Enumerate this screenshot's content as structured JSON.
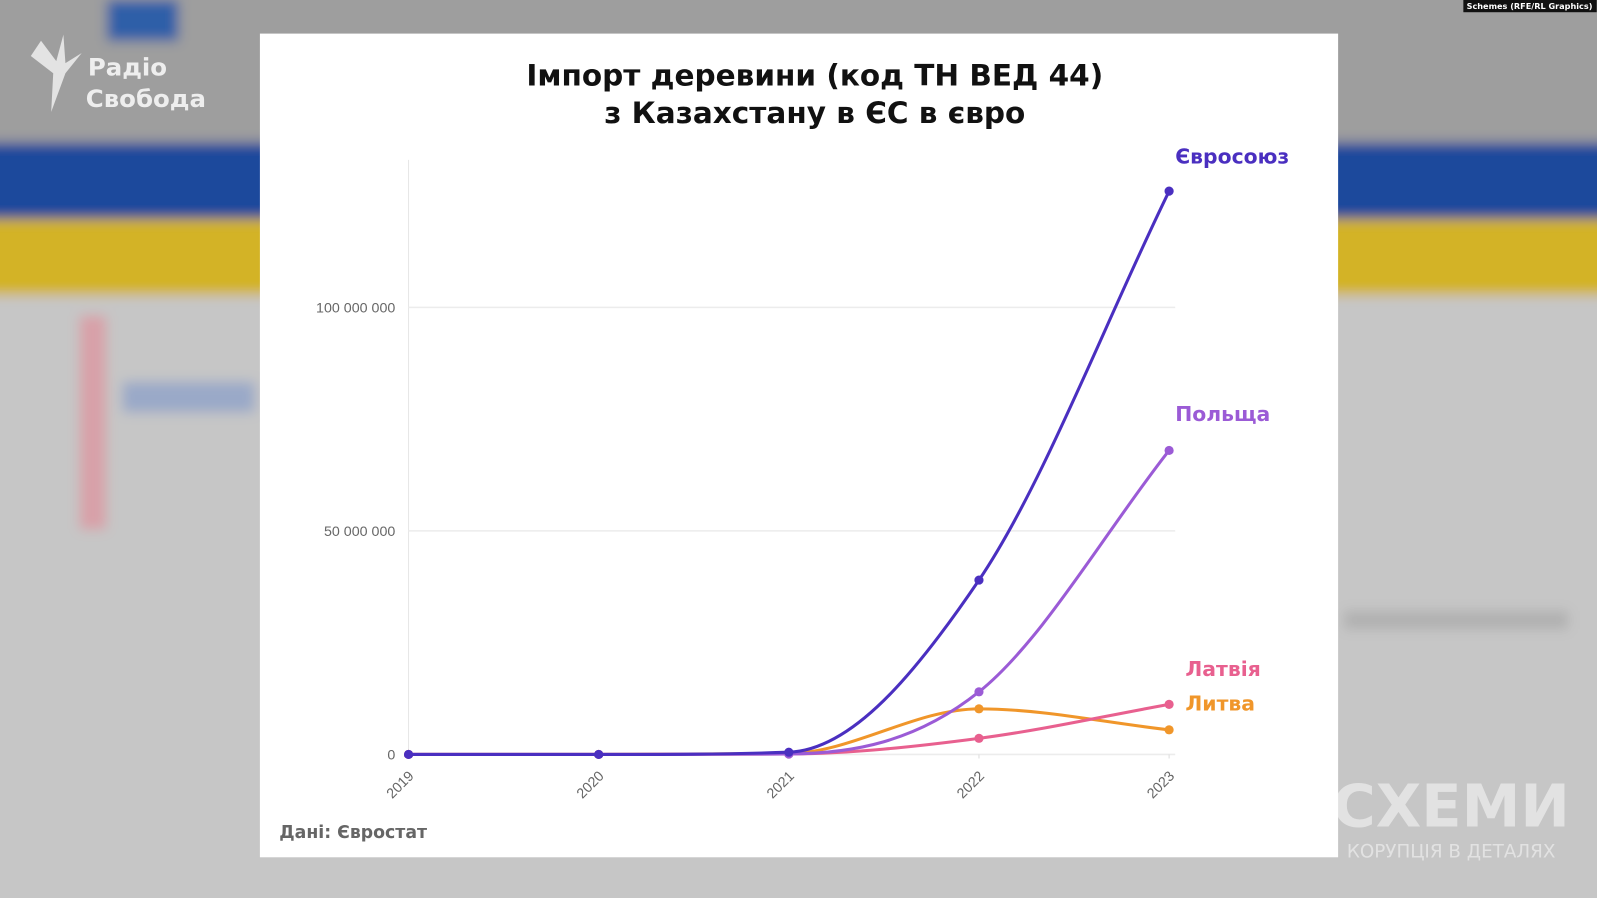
{
  "overlay": {
    "logo": [
      "Радіо",
      "Свобода"
    ],
    "credit": "Schemes (RFE/RL Graphics)",
    "watermark": "СХЕМИ",
    "watermark_sub": "КОРУПЦІЯ В ДЕТАЛЯХ"
  },
  "chart_data": {
    "type": "line",
    "title": [
      "Імпорт деревини (код ТН ВЕД 44)",
      "з Казахстану в ЄС в євро"
    ],
    "source": "Дані: Євростат",
    "x": [
      2019,
      2020,
      2021,
      2022,
      2023
    ],
    "xlim": [
      2019,
      2023
    ],
    "xticks": [
      2019,
      2020,
      2021,
      2022,
      2023
    ],
    "ylim": [
      0,
      133000000
    ],
    "yticks": [
      0,
      {
        "value": 50000000,
        "label": "50 000 000"
      },
      {
        "value": 100000000,
        "label": "100 000 000"
      }
    ],
    "grid": true,
    "series": [
      {
        "name": "Євросоюз",
        "color": "#4a2fc0",
        "values": [
          0,
          0,
          500000,
          39000000,
          126000000
        ]
      },
      {
        "name": "Польща",
        "color": "#9b5bd6",
        "values": [
          0,
          0,
          100000,
          14000000,
          68000000
        ]
      },
      {
        "name": "Латвія",
        "color": "#e8608f",
        "values": [
          0,
          0,
          100000,
          3600000,
          11200000
        ]
      },
      {
        "name": "Литва",
        "color": "#f0962a",
        "values": [
          0,
          0,
          200000,
          10200000,
          5500000
        ]
      }
    ]
  }
}
